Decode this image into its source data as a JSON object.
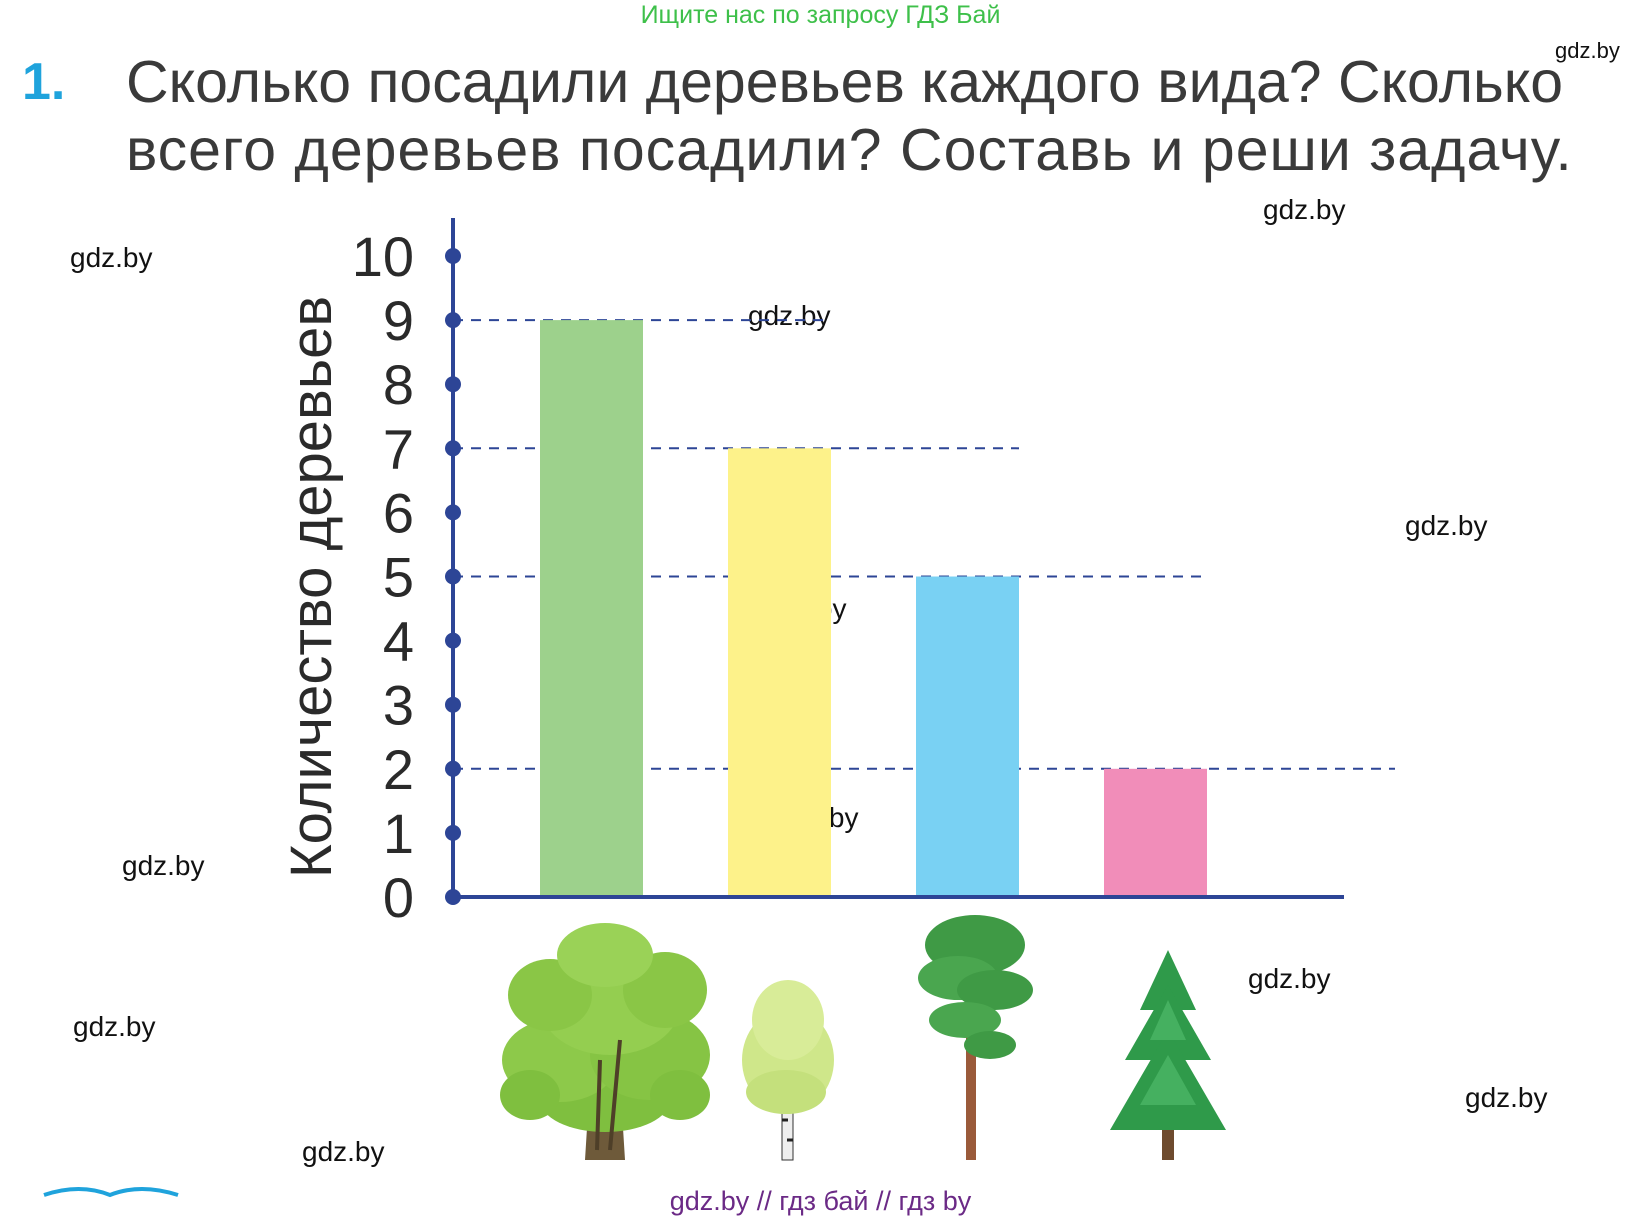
{
  "banner": "Ищите нас по запросу ГДЗ Бай",
  "task": {
    "number": "1.",
    "line1": "Сколько посадили деревьев каждого вида? Сколько",
    "line2": "всего деревьев посадили? Составь и реши задачу."
  },
  "watermark": "gdz.by",
  "footer": "gdz.by  //  гдз бай  //  гдз by",
  "chart_data": {
    "type": "bar",
    "ylabel": "Количество деревьев",
    "ylim": [
      0,
      10
    ],
    "yticks": [
      "0",
      "1",
      "2",
      "3",
      "4",
      "5",
      "6",
      "7",
      "8",
      "9",
      "10"
    ],
    "categories": [
      "oak-tree-icon",
      "birch-tree-icon",
      "pine-tree-icon",
      "spruce-tree-icon"
    ],
    "values": [
      9,
      7,
      5,
      2
    ],
    "colors": [
      "#9dd18c",
      "#fdf28a",
      "#79d1f3",
      "#f18db9"
    ],
    "axis_color": "#2d4596",
    "grid": "dashed guide lines at bar tops"
  }
}
